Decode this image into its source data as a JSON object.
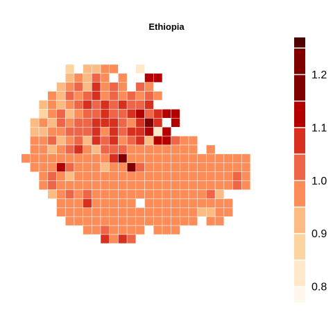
{
  "title": "Ethiopia",
  "chart_data": {
    "type": "heatmap",
    "title": "Ethiopia",
    "legend": {
      "position": "right",
      "min": 0.77,
      "max": 1.27,
      "ticks": [
        "0.8",
        "0.9",
        "1.0",
        "1.1",
        "1.2"
      ],
      "tick_values": [
        0.8,
        0.9,
        1.0,
        1.1,
        1.2
      ],
      "bins": [
        0.75,
        0.8,
        0.85,
        0.9,
        0.95,
        1.0,
        1.05,
        1.1,
        1.15,
        1.2,
        1.25,
        1.3
      ],
      "colors": [
        "#fff7ec",
        "#fee8c8",
        "#fdd49e",
        "#fdbb84",
        "#fc8d59",
        "#ef6548",
        "#d7301f",
        "#b30000",
        "#7f0000",
        "#7f0000",
        "#500000"
      ]
    },
    "codes": {
      "0": 0.78,
      "1": 0.83,
      "2": 0.88,
      "3": 0.93,
      "4": 0.98,
      "5": 1.03,
      "6": 1.08,
      "7": 1.13,
      "8": 1.18,
      "9": 1.23
    },
    "grid": [
      ".............................",
      "......2.3344..1..............",
      "......34354.4..77............",
      ".....34536454.54.............",
      "....4354564545454............",
      "...3434565656556.............",
      "...2453455655675677..........",
      "..343545566654696.7..........",
      "..3344555646566717...........",
      "..4453453656456377544........",
      "..4434564355544444444.4......",
      ".44444444446944444444444444..",
      "..4447544434495444444444444..",
      "...454344444444444444444454..",
      "...454444444444444444444454..",
      "....34545444444444444453.....",
      ".....444644444.4444444444....",
      ".....44444444444444443344....",
      "......444444444444444.44.....",
      "........4454444.444..........",
      "..........6465..............."
    ]
  }
}
